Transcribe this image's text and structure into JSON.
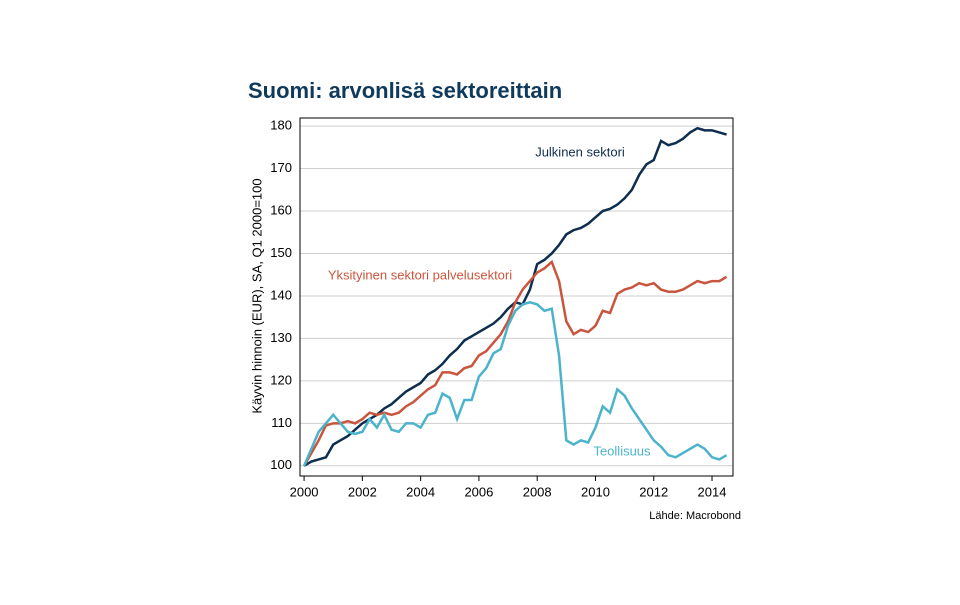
{
  "chart_data": {
    "type": "line",
    "title": "Suomi: arvonlisä sektoreittain",
    "y_label": "Käyvin hinnoin (EUR), SA, Q1 2000=100",
    "source": "Lähde: Macrobond",
    "xlim": [
      1999.86,
      2014.72
    ],
    "xticks": [
      2000,
      2002,
      2004,
      2006,
      2008,
      2010,
      2012,
      2014
    ],
    "ylim": [
      97.6,
      181.9
    ],
    "yticks": [
      100,
      110,
      120,
      130,
      140,
      150,
      160,
      170,
      180
    ],
    "grid": true,
    "x": [
      2000,
      2000.25,
      2000.5,
      2000.75,
      2001,
      2001.25,
      2001.5,
      2001.75,
      2002,
      2002.25,
      2002.5,
      2002.75,
      2003,
      2003.25,
      2003.5,
      2003.75,
      2004,
      2004.25,
      2004.5,
      2004.75,
      2005,
      2005.25,
      2005.5,
      2005.75,
      2006,
      2006.25,
      2006.5,
      2006.75,
      2007,
      2007.25,
      2007.5,
      2007.75,
      2008,
      2008.25,
      2008.5,
      2008.75,
      2009,
      2009.25,
      2009.5,
      2009.75,
      2010,
      2010.25,
      2010.5,
      2010.75,
      2011,
      2011.25,
      2011.5,
      2011.75,
      2012,
      2012.25,
      2012.5,
      2012.75,
      2013,
      2013.25,
      2013.5,
      2013.75,
      2014,
      2014.25,
      2014.5
    ],
    "series": [
      {
        "name": "Julkinen sektori",
        "color": "#0d2e4f",
        "values": [
          100,
          101,
          101.5,
          102,
          105,
          106,
          107,
          108.5,
          110,
          111,
          112,
          113.5,
          114.5,
          116,
          117.5,
          118.5,
          119.5,
          121.5,
          122.5,
          124,
          126,
          127.5,
          129.5,
          130.5,
          131.5,
          132.5,
          133.5,
          135,
          137,
          138.5,
          138,
          141.5,
          147.5,
          148.5,
          150,
          152,
          154.5,
          155.5,
          156,
          157,
          158.5,
          160,
          160.5,
          161.5,
          163,
          165,
          168.5,
          171,
          172,
          176.5,
          175.5,
          176,
          177,
          178.5,
          179.5,
          179,
          179,
          178.5,
          178
        ]
      },
      {
        "name": "Yksityinen sektori palvelusektori",
        "color": "#c8553d",
        "values": [
          100,
          103,
          106,
          109.5,
          110,
          110,
          110.5,
          110,
          111,
          112.5,
          112,
          112.5,
          112,
          112.5,
          114,
          115,
          116.5,
          118,
          119,
          122,
          122,
          121.5,
          123,
          123.5,
          126,
          127,
          129,
          131,
          134,
          138.5,
          141.5,
          143.5,
          145.5,
          146.5,
          148,
          143.5,
          134,
          131,
          132,
          131.5,
          133,
          136.5,
          136,
          140.5,
          141.5,
          142,
          143,
          142.5,
          143,
          141.5,
          141,
          141,
          141.5,
          142.5,
          143.5,
          143,
          143.5,
          143.5,
          144.5
        ]
      },
      {
        "name": "Teollisuus",
        "color": "#4bb3cc",
        "values": [
          100,
          104,
          108,
          110,
          112,
          110,
          108,
          107.5,
          108,
          111,
          109,
          112,
          108.5,
          108,
          110,
          110,
          109,
          112,
          112.5,
          117,
          116,
          111,
          115.5,
          115.5,
          121,
          123,
          126.5,
          127.5,
          133,
          136.5,
          138,
          138.5,
          138,
          136.5,
          137,
          126,
          106,
          105,
          106,
          105.5,
          109,
          114,
          112.5,
          118,
          116.5,
          113.5,
          111,
          108.5,
          106,
          104.5,
          102.5,
          102,
          103,
          104,
          105,
          104,
          102,
          101.5,
          102.5
        ]
      }
    ]
  }
}
